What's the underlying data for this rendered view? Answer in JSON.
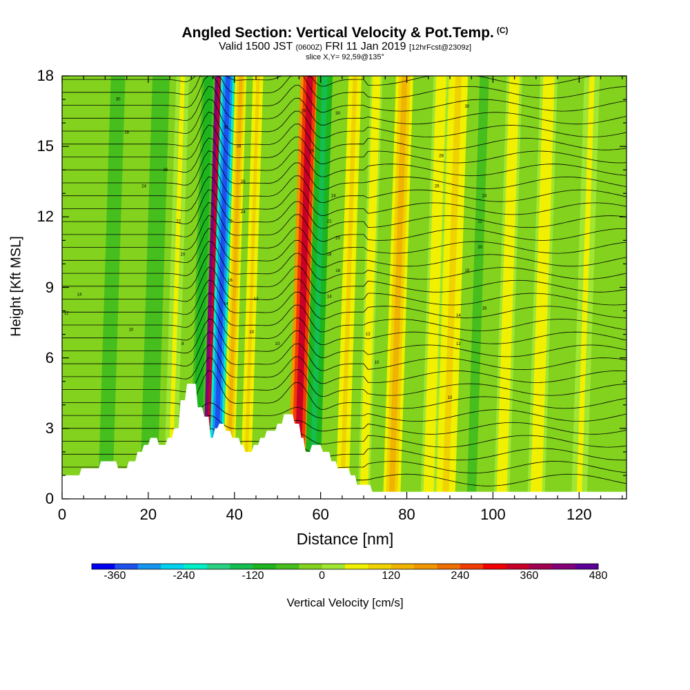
{
  "chart_data": {
    "type": "heatmap",
    "title": "Angled Section: Vertical Velocity & Pot.Temp.",
    "title_tag": "(C)",
    "subtitle_parts": [
      "Valid 1500 JST",
      "(0600Z)",
      "FRI 11 Jan 2019",
      "[12hrFcst@2309z]"
    ],
    "slice": "slice X,Y= 92,59@135°",
    "xlabel": "Distance [nm]",
    "ylabel": "Height [Kft MSL]",
    "xlim": [
      0,
      131
    ],
    "ylim": [
      0,
      18
    ],
    "xticks": [
      "0",
      "20",
      "40",
      "60",
      "80",
      "100",
      "120"
    ],
    "yticks": [
      "0",
      "3",
      "6",
      "9",
      "12",
      "15",
      "18"
    ],
    "colorbar": {
      "label": "Vertical Velocity [cm/s]",
      "ticks": [
        "-360",
        "-240",
        "-120",
        "0",
        "120",
        "240",
        "360",
        "480"
      ],
      "range": [
        -400,
        480
      ],
      "colors": [
        "#0000f0",
        "#1e50f0",
        "#1496f0",
        "#00d2f0",
        "#00f0c8",
        "#28d282",
        "#14be50",
        "#1eb41e",
        "#46be1e",
        "#82d21e",
        "#a0e632",
        "#f0f000",
        "#f0d200",
        "#f0b400",
        "#f09600",
        "#f06e00",
        "#f03c00",
        "#f00000",
        "#c80028",
        "#a00050",
        "#820078",
        "#5a0096"
      ]
    },
    "velocity_bands": [
      {
        "x": 32.5,
        "w": 2.3,
        "v": 420
      },
      {
        "x": 35.5,
        "w": 1.6,
        "v": -360
      },
      {
        "x": 31.0,
        "w": 1.5,
        "v": -120
      },
      {
        "x": 38.5,
        "w": 1.3,
        "v": 130
      },
      {
        "x": 42.5,
        "w": 1.2,
        "v": 80
      },
      {
        "x": 54.5,
        "w": 2.2,
        "v": 330
      },
      {
        "x": 58.0,
        "w": 1.8,
        "v": -150
      },
      {
        "x": 65.0,
        "w": 1.5,
        "v": 90
      },
      {
        "x": 70.0,
        "w": 1.4,
        "v": 60
      },
      {
        "x": 76.5,
        "w": 2.0,
        "v": 130
      },
      {
        "x": 85.0,
        "w": 1.8,
        "v": 60
      },
      {
        "x": 89.0,
        "w": 2.2,
        "v": 80
      },
      {
        "x": 95.0,
        "w": 1.6,
        "v": -70
      },
      {
        "x": 102.0,
        "w": 1.8,
        "v": 60
      },
      {
        "x": 110.0,
        "w": 2.0,
        "v": 60
      },
      {
        "x": 120.0,
        "w": 1.8,
        "v": 40
      },
      {
        "x": 10.0,
        "w": 2.5,
        "v": -60
      },
      {
        "x": 20.0,
        "w": 2.0,
        "v": -80
      },
      {
        "x": 25.0,
        "w": 1.5,
        "v": 40
      }
    ],
    "terrain": [
      {
        "x": 0,
        "h": 1.0
      },
      {
        "x": 4,
        "h": 1.0
      },
      {
        "x": 4.5,
        "h": 1.3
      },
      {
        "x": 8.5,
        "h": 1.3
      },
      {
        "x": 9,
        "h": 1.6
      },
      {
        "x": 12.5,
        "h": 1.6
      },
      {
        "x": 13,
        "h": 1.3
      },
      {
        "x": 15,
        "h": 1.3
      },
      {
        "x": 15.5,
        "h": 1.6
      },
      {
        "x": 17,
        "h": 1.6
      },
      {
        "x": 17.5,
        "h": 2.0
      },
      {
        "x": 18.5,
        "h": 2.0
      },
      {
        "x": 19,
        "h": 2.3
      },
      {
        "x": 20,
        "h": 2.3
      },
      {
        "x": 20.5,
        "h": 2.6
      },
      {
        "x": 22,
        "h": 2.6
      },
      {
        "x": 22.5,
        "h": 2.3
      },
      {
        "x": 24,
        "h": 2.3
      },
      {
        "x": 24.5,
        "h": 2.6
      },
      {
        "x": 25.5,
        "h": 2.6
      },
      {
        "x": 26,
        "h": 3.0
      },
      {
        "x": 27,
        "h": 3.0
      },
      {
        "x": 27.5,
        "h": 4.2
      },
      {
        "x": 28.5,
        "h": 4.2
      },
      {
        "x": 29,
        "h": 4.9
      },
      {
        "x": 31,
        "h": 4.9
      },
      {
        "x": 31.5,
        "h": 3.9
      },
      {
        "x": 32.5,
        "h": 3.9
      },
      {
        "x": 33,
        "h": 3.5
      },
      {
        "x": 34,
        "h": 3.5
      },
      {
        "x": 34.5,
        "h": 2.6
      },
      {
        "x": 35,
        "h": 2.6
      },
      {
        "x": 35.5,
        "h": 3.0
      },
      {
        "x": 36,
        "h": 3.0
      },
      {
        "x": 36.5,
        "h": 3.2
      },
      {
        "x": 37.5,
        "h": 3.2
      },
      {
        "x": 38,
        "h": 2.9
      },
      {
        "x": 39,
        "h": 2.9
      },
      {
        "x": 39.5,
        "h": 2.6
      },
      {
        "x": 41,
        "h": 2.6
      },
      {
        "x": 41.5,
        "h": 2.3
      },
      {
        "x": 42,
        "h": 2.3
      },
      {
        "x": 42.5,
        "h": 2.0
      },
      {
        "x": 44,
        "h": 2.0
      },
      {
        "x": 44.5,
        "h": 2.3
      },
      {
        "x": 45.5,
        "h": 2.3
      },
      {
        "x": 46,
        "h": 2.6
      },
      {
        "x": 47,
        "h": 2.6
      },
      {
        "x": 47.5,
        "h": 2.9
      },
      {
        "x": 49.5,
        "h": 2.9
      },
      {
        "x": 50,
        "h": 3.2
      },
      {
        "x": 51,
        "h": 3.2
      },
      {
        "x": 51.5,
        "h": 3.6
      },
      {
        "x": 53.5,
        "h": 3.6
      },
      {
        "x": 54,
        "h": 3.2
      },
      {
        "x": 55,
        "h": 3.2
      },
      {
        "x": 55.5,
        "h": 2.6
      },
      {
        "x": 56,
        "h": 2.6
      },
      {
        "x": 56.5,
        "h": 2.0
      },
      {
        "x": 57.5,
        "h": 2.0
      },
      {
        "x": 58,
        "h": 2.3
      },
      {
        "x": 60,
        "h": 2.3
      },
      {
        "x": 60.5,
        "h": 2.0
      },
      {
        "x": 62,
        "h": 2.0
      },
      {
        "x": 62.5,
        "h": 1.6
      },
      {
        "x": 63.5,
        "h": 1.6
      },
      {
        "x": 64,
        "h": 1.3
      },
      {
        "x": 66.5,
        "h": 1.3
      },
      {
        "x": 67,
        "h": 1.0
      },
      {
        "x": 68,
        "h": 1.0
      },
      {
        "x": 68.5,
        "h": 0.6
      },
      {
        "x": 71.5,
        "h": 0.6
      },
      {
        "x": 72,
        "h": 0.3
      },
      {
        "x": 131,
        "h": 0.3
      }
    ],
    "isotherm_labels": [
      {
        "x": 13,
        "y": 17.0,
        "t": "30"
      },
      {
        "x": 15,
        "y": 15.6,
        "t": "28"
      },
      {
        "x": 24,
        "y": 14.0,
        "t": "26"
      },
      {
        "x": 19,
        "y": 13.3,
        "t": "24"
      },
      {
        "x": 27,
        "y": 11.8,
        "t": "22"
      },
      {
        "x": 28,
        "y": 10.4,
        "t": "20"
      },
      {
        "x": 4,
        "y": 8.7,
        "t": "14"
      },
      {
        "x": 1,
        "y": 7.9,
        "t": "12"
      },
      {
        "x": 16,
        "y": 7.2,
        "t": "10"
      },
      {
        "x": 28,
        "y": 6.6,
        "t": "8"
      },
      {
        "x": 38,
        "y": 15.8,
        "t": "30"
      },
      {
        "x": 41,
        "y": 15.0,
        "t": "28"
      },
      {
        "x": 42,
        "y": 13.5,
        "t": "26"
      },
      {
        "x": 42,
        "y": 12.2,
        "t": "24"
      },
      {
        "x": 39,
        "y": 11.8,
        "t": "22"
      },
      {
        "x": 39,
        "y": 9.3,
        "t": "16"
      },
      {
        "x": 38,
        "y": 8.3,
        "t": "14"
      },
      {
        "x": 45,
        "y": 8.5,
        "t": "12"
      },
      {
        "x": 44,
        "y": 7.1,
        "t": "10"
      },
      {
        "x": 50,
        "y": 6.6,
        "t": "10"
      },
      {
        "x": 56,
        "y": 16.5,
        "t": "28"
      },
      {
        "x": 58,
        "y": 14.8,
        "t": "26"
      },
      {
        "x": 63,
        "y": 12.9,
        "t": "24"
      },
      {
        "x": 62,
        "y": 11.8,
        "t": "22"
      },
      {
        "x": 64,
        "y": 11.1,
        "t": "20"
      },
      {
        "x": 62,
        "y": 10.4,
        "t": "18"
      },
      {
        "x": 64,
        "y": 9.7,
        "t": "16"
      },
      {
        "x": 62,
        "y": 8.6,
        "t": "14"
      },
      {
        "x": 71,
        "y": 7.0,
        "t": "12"
      },
      {
        "x": 73,
        "y": 5.8,
        "t": "10"
      },
      {
        "x": 64,
        "y": 16.4,
        "t": "30"
      },
      {
        "x": 94,
        "y": 16.7,
        "t": "30"
      },
      {
        "x": 88,
        "y": 14.6,
        "t": "28"
      },
      {
        "x": 87,
        "y": 13.3,
        "t": "26"
      },
      {
        "x": 98,
        "y": 12.9,
        "t": "24"
      },
      {
        "x": 97,
        "y": 11.8,
        "t": "22"
      },
      {
        "x": 97,
        "y": 10.7,
        "t": "20"
      },
      {
        "x": 94,
        "y": 9.7,
        "t": "18"
      },
      {
        "x": 98,
        "y": 8.1,
        "t": "16"
      },
      {
        "x": 92,
        "y": 7.8,
        "t": "14"
      },
      {
        "x": 92,
        "y": 6.6,
        "t": "12"
      },
      {
        "x": 90,
        "y": 4.3,
        "t": "10"
      }
    ]
  }
}
